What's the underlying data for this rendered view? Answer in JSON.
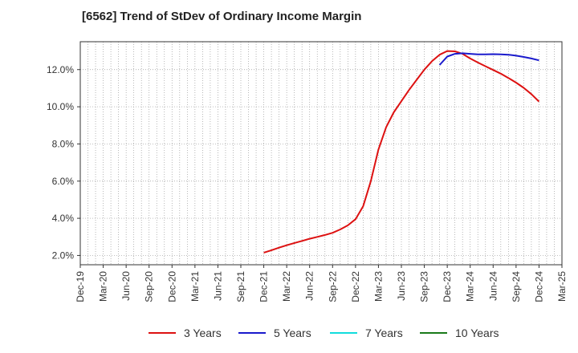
{
  "chart_data": {
    "type": "line",
    "title": "[6562]  Trend of StDev of Ordinary Income Margin",
    "xlabel": "",
    "ylabel": "",
    "x_ticks": [
      "Dec-19",
      "Mar-20",
      "Jun-20",
      "Sep-20",
      "Dec-20",
      "Mar-21",
      "Jun-21",
      "Sep-21",
      "Dec-21",
      "Mar-22",
      "Jun-22",
      "Sep-22",
      "Dec-22",
      "Mar-23",
      "Jun-23",
      "Sep-23",
      "Dec-23",
      "Mar-24",
      "Jun-24",
      "Sep-24",
      "Dec-24",
      "Mar-25"
    ],
    "y_ticks": [
      "2.0%",
      "4.0%",
      "6.0%",
      "8.0%",
      "10.0%",
      "12.0%"
    ],
    "y_tick_values": [
      2,
      4,
      6,
      8,
      10,
      12
    ],
    "ylim": [
      1.5,
      13.5
    ],
    "grid": true,
    "legend_position": "bottom",
    "series": [
      {
        "name": "3 Years",
        "color": "#dd1111",
        "x": [
          "Dec-21",
          "Jan-22",
          "Feb-22",
          "Mar-22",
          "Apr-22",
          "May-22",
          "Jun-22",
          "Jul-22",
          "Aug-22",
          "Sep-22",
          "Oct-22",
          "Nov-22",
          "Dec-22",
          "Jan-23",
          "Feb-23",
          "Mar-23",
          "Apr-23",
          "May-23",
          "Jun-23",
          "Jul-23",
          "Aug-23",
          "Sep-23",
          "Oct-23",
          "Nov-23",
          "Dec-23",
          "Jan-24",
          "Feb-24",
          "Mar-24",
          "Apr-24",
          "May-24",
          "Jun-24",
          "Jul-24",
          "Aug-24",
          "Sep-24",
          "Oct-24",
          "Nov-24",
          "Dec-24"
        ],
        "values": [
          2.15,
          2.28,
          2.42,
          2.55,
          2.67,
          2.78,
          2.9,
          3.0,
          3.1,
          3.22,
          3.4,
          3.62,
          3.95,
          4.65,
          6.0,
          7.7,
          8.9,
          9.7,
          10.3,
          10.9,
          11.45,
          12.0,
          12.45,
          12.8,
          13.0,
          12.98,
          12.85,
          12.6,
          12.38,
          12.18,
          11.98,
          11.78,
          11.55,
          11.3,
          11.02,
          10.68,
          10.28
        ]
      },
      {
        "name": "5 Years",
        "color": "#1a1acc",
        "x": [
          "Nov-23",
          "Dec-23",
          "Jan-24",
          "Feb-24",
          "Mar-24",
          "Apr-24",
          "May-24",
          "Jun-24",
          "Jul-24",
          "Aug-24",
          "Sep-24",
          "Oct-24",
          "Nov-24",
          "Dec-24"
        ],
        "values": [
          12.25,
          12.7,
          12.85,
          12.88,
          12.85,
          12.82,
          12.82,
          12.83,
          12.82,
          12.8,
          12.75,
          12.68,
          12.6,
          12.5
        ]
      },
      {
        "name": "7 Years",
        "color": "#11dddd",
        "x": [],
        "values": []
      },
      {
        "name": "10 Years",
        "color": "#1a7a1a",
        "x": [],
        "values": []
      }
    ]
  }
}
